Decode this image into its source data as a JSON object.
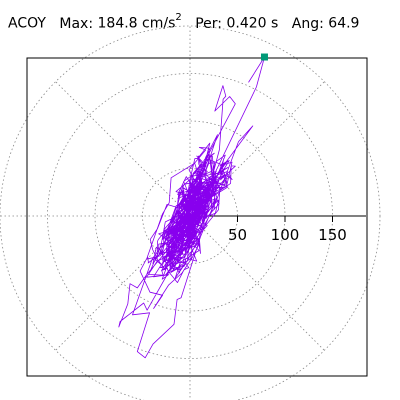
{
  "header": {
    "channel": "ACOY",
    "max_label": "Max:",
    "max_value": "184.8",
    "max_unit": "cm/s",
    "max_unit_exp": "2",
    "period_label": "Per:",
    "period_value": "0.420 s",
    "angle_label": "Ang:",
    "angle_value": "64.9"
  },
  "chart_data": {
    "type": "scatter",
    "title": "",
    "radial_ticks": [
      "50",
      "100",
      "150"
    ],
    "radial_tick_values": [
      50,
      100,
      150
    ],
    "rlim": [
      0,
      200
    ],
    "grid": true,
    "grid_rings": [
      50,
      100,
      150,
      200
    ],
    "grid_spokes_deg": [
      0,
      45,
      90,
      135,
      180,
      225,
      270,
      315
    ],
    "peak": {
      "value": 184.8,
      "angle_deg": 64.9,
      "marker": "square"
    },
    "orbit_style": "dense looping trajectory",
    "orbit_trend_angle_deg": 64.9,
    "colors": {
      "orbit": "#8800ee",
      "peak_marker": "#009977",
      "grid": "#888888",
      "axes": "#000000",
      "frame": "#000000"
    }
  }
}
